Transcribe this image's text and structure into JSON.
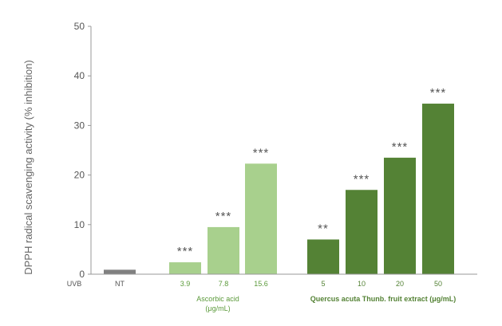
{
  "chart_data": {
    "type": "bar",
    "title": "",
    "ylabel": "DPPH radical scavenging activity (% inhibition)",
    "ylim": [
      0,
      50
    ],
    "yticks": [
      0,
      10,
      20,
      30,
      40,
      50
    ],
    "grid": false,
    "row_label": "UVB",
    "bars": [
      {
        "category": "NT",
        "value": 0.9,
        "sig": "",
        "color": "#808080",
        "label_color": "#555555"
      },
      {
        "category": "3.9",
        "value": 2.4,
        "sig": "***",
        "color": "#a8d08d",
        "label_color": "#5b9a3a"
      },
      {
        "category": "7.8",
        "value": 9.5,
        "sig": "***",
        "color": "#a8d08d",
        "label_color": "#5b9a3a"
      },
      {
        "category": "15.6",
        "value": 22.3,
        "sig": "***",
        "color": "#a8d08d",
        "label_color": "#5b9a3a"
      },
      {
        "category": "5",
        "value": 7.0,
        "sig": "**",
        "color": "#548235",
        "label_color": "#548235"
      },
      {
        "category": "10",
        "value": 17.0,
        "sig": "***",
        "color": "#548235",
        "label_color": "#548235"
      },
      {
        "category": "20",
        "value": 23.5,
        "sig": "***",
        "color": "#548235",
        "label_color": "#548235"
      },
      {
        "category": "50",
        "value": 34.4,
        "sig": "***",
        "color": "#548235",
        "label_color": "#548235"
      }
    ],
    "groups": [
      {
        "name": "Ascorbic acid",
        "unit": "(μg/mL)",
        "color": "#5b9a3a",
        "bold": false
      },
      {
        "name": "Quercus acuta Thunb. fruit extract (μg/mL)",
        "unit": "",
        "color": "#548235",
        "bold": true
      }
    ]
  }
}
